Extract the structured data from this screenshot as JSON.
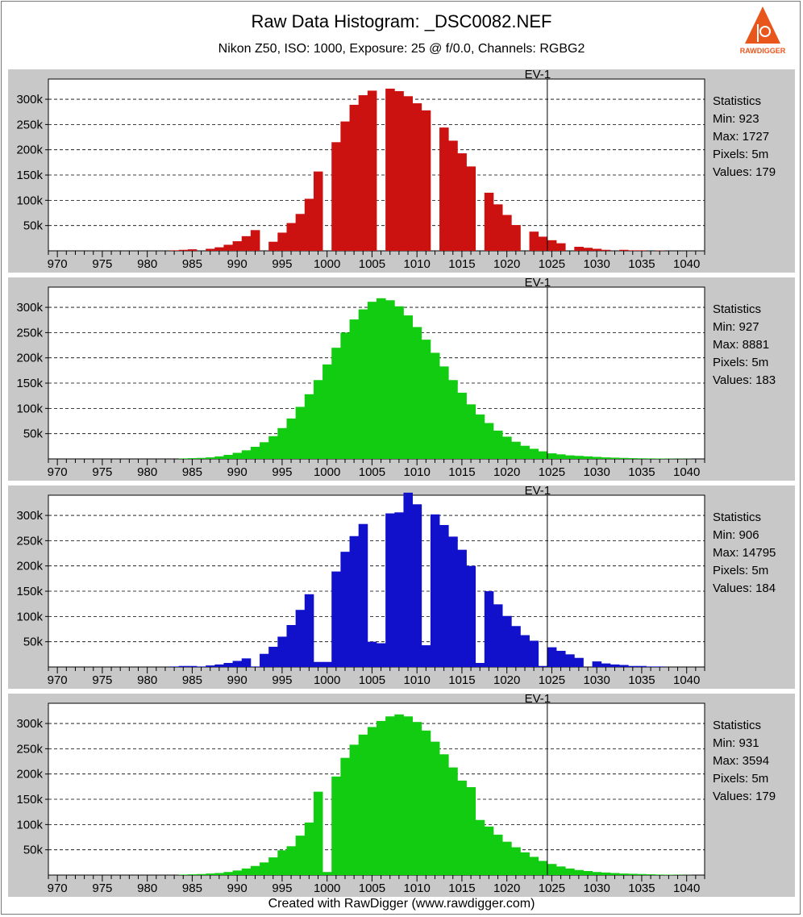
{
  "header": {
    "title": "Raw Data Histogram: _DSC0082.NEF",
    "subtitle": "Nikon Z50, ISO: 1000, Exposure: 25 @ f/0.0, Channels: RGBG2",
    "logo_text": "RAWDIGGER"
  },
  "footer": {
    "text": "Created with RawDigger (www.rawdigger.com)"
  },
  "chart_data": [
    {
      "type": "bar",
      "channel": "R",
      "color": "#cc1111",
      "marker_label": "EV-1",
      "marker_x": 1024.5,
      "xlim": [
        969,
        1042
      ],
      "ylim": [
        0,
        340000
      ],
      "x_ticks": [
        970,
        975,
        980,
        985,
        990,
        995,
        1000,
        1005,
        1010,
        1015,
        1020,
        1025,
        1030,
        1035,
        1040
      ],
      "y_ticks": [
        50000,
        100000,
        150000,
        200000,
        250000,
        300000
      ],
      "y_tick_labels": [
        "50k",
        "100k",
        "150k",
        "200k",
        "250k",
        "300k"
      ],
      "stats": {
        "heading": "Statistics",
        "min": "Min: 923",
        "max": "Max: 1727",
        "pixels": "Pixels: 5m",
        "values": "Values: 179"
      },
      "x": [
        983,
        984,
        985,
        986,
        987,
        988,
        989,
        990,
        991,
        992,
        993,
        994,
        995,
        996,
        997,
        998,
        999,
        1000,
        1001,
        1002,
        1003,
        1004,
        1005,
        1006,
        1007,
        1008,
        1009,
        1010,
        1011,
        1012,
        1013,
        1014,
        1015,
        1016,
        1017,
        1018,
        1019,
        1020,
        1021,
        1022,
        1023,
        1024,
        1025,
        1026,
        1027,
        1028,
        1029,
        1030,
        1031,
        1032,
        1033,
        1034,
        1035,
        1036,
        1037,
        1038,
        1039,
        1040
      ],
      "values": [
        1000,
        2000,
        3000,
        0,
        4000,
        7000,
        12000,
        19000,
        29000,
        41000,
        0,
        18000,
        36000,
        55000,
        73000,
        103000,
        157000,
        0,
        215000,
        256000,
        289000,
        308000,
        317000,
        0,
        321000,
        316000,
        306000,
        292000,
        278000,
        0,
        244000,
        218000,
        193000,
        167000,
        0,
        115000,
        92000,
        71000,
        51000,
        0,
        38000,
        28000,
        21000,
        15000,
        0,
        8000,
        6000,
        4000,
        2000,
        0,
        2000,
        1000,
        1000,
        0,
        500,
        0,
        0,
        0
      ]
    },
    {
      "type": "bar",
      "channel": "G",
      "color": "#11cc11",
      "marker_label": "EV-1",
      "marker_x": 1024.5,
      "xlim": [
        969,
        1042
      ],
      "ylim": [
        0,
        340000
      ],
      "x_ticks": [
        970,
        975,
        980,
        985,
        990,
        995,
        1000,
        1005,
        1010,
        1015,
        1020,
        1025,
        1030,
        1035,
        1040
      ],
      "y_ticks": [
        50000,
        100000,
        150000,
        200000,
        250000,
        300000
      ],
      "y_tick_labels": [
        "50k",
        "100k",
        "150k",
        "200k",
        "250k",
        "300k"
      ],
      "stats": {
        "heading": "Statistics",
        "min": "Min: 927",
        "max": "Max: 8881",
        "pixels": "Pixels: 5m",
        "values": "Values: 183"
      },
      "x": [
        984,
        985,
        986,
        987,
        988,
        989,
        990,
        991,
        992,
        993,
        994,
        995,
        996,
        997,
        998,
        999,
        1000,
        1001,
        1002,
        1003,
        1004,
        1005,
        1006,
        1007,
        1008,
        1009,
        1010,
        1011,
        1012,
        1013,
        1014,
        1015,
        1016,
        1017,
        1018,
        1019,
        1020,
        1021,
        1022,
        1023,
        1024,
        1025,
        1026,
        1027,
        1028,
        1029,
        1030,
        1031,
        1032,
        1033,
        1034,
        1035,
        1036,
        1037,
        1038,
        1039,
        1040
      ],
      "values": [
        1000,
        1500,
        2000,
        3000,
        5000,
        8000,
        12000,
        17000,
        24000,
        33000,
        45000,
        61000,
        80000,
        103000,
        128000,
        156000,
        187000,
        220000,
        250000,
        276000,
        296000,
        311000,
        318000,
        314000,
        302000,
        284000,
        261000,
        236000,
        210000,
        183000,
        156000,
        131000,
        108000,
        88000,
        71000,
        56000,
        44000,
        34000,
        26000,
        20000,
        15000,
        11000,
        9000,
        7000,
        6000,
        5000,
        4000,
        3000,
        2500,
        2000,
        1500,
        1200,
        1000,
        800,
        600,
        400,
        300
      ]
    },
    {
      "type": "bar",
      "channel": "B",
      "color": "#1111cc",
      "marker_label": "EV-1",
      "marker_x": 1024.5,
      "xlim": [
        969,
        1042
      ],
      "ylim": [
        0,
        340000
      ],
      "x_ticks": [
        970,
        975,
        980,
        985,
        990,
        995,
        1000,
        1005,
        1010,
        1015,
        1020,
        1025,
        1030,
        1035,
        1040
      ],
      "y_ticks": [
        50000,
        100000,
        150000,
        200000,
        250000,
        300000
      ],
      "y_tick_labels": [
        "50k",
        "100k",
        "150k",
        "200k",
        "250k",
        "300k"
      ],
      "stats": {
        "heading": "Statistics",
        "min": "Min: 906",
        "max": "Max: 14795",
        "pixels": "Pixels: 5m",
        "values": "Values: 184"
      },
      "x": [
        983,
        984,
        985,
        986,
        987,
        988,
        989,
        990,
        991,
        992,
        993,
        994,
        995,
        996,
        997,
        998,
        999,
        1000,
        1001,
        1002,
        1003,
        1004,
        1005,
        1006,
        1007,
        1008,
        1009,
        1010,
        1011,
        1012,
        1013,
        1014,
        1015,
        1016,
        1017,
        1018,
        1019,
        1020,
        1021,
        1022,
        1023,
        1024,
        1025,
        1026,
        1027,
        1028,
        1029,
        1030,
        1031,
        1032,
        1033,
        1034,
        1035,
        1036,
        1037,
        1038,
        1039,
        1040
      ],
      "values": [
        1000,
        2000,
        2000,
        1000,
        3000,
        5000,
        8000,
        12000,
        17000,
        1000,
        26000,
        40000,
        60000,
        83000,
        113000,
        144000,
        10000,
        10000,
        189000,
        228000,
        259000,
        283000,
        50000,
        47000,
        304000,
        306000,
        345000,
        322000,
        43000,
        302000,
        281000,
        258000,
        232000,
        200000,
        8000,
        150000,
        124000,
        101000,
        81000,
        63000,
        52000,
        2000,
        39000,
        32000,
        25000,
        18000,
        0,
        11000,
        7000,
        5000,
        4000,
        2000,
        2000,
        1000,
        1000,
        0,
        0,
        0
      ]
    },
    {
      "type": "bar",
      "channel": "G2",
      "color": "#11cc11",
      "marker_label": "EV-1",
      "marker_x": 1024.5,
      "xlim": [
        969,
        1042
      ],
      "ylim": [
        0,
        340000
      ],
      "x_ticks": [
        970,
        975,
        980,
        985,
        990,
        995,
        1000,
        1005,
        1010,
        1015,
        1020,
        1025,
        1030,
        1035,
        1040
      ],
      "y_ticks": [
        50000,
        100000,
        150000,
        200000,
        250000,
        300000
      ],
      "y_tick_labels": [
        "50k",
        "100k",
        "150k",
        "200k",
        "250k",
        "300k"
      ],
      "stats": {
        "heading": "Statistics",
        "min": "Min: 931",
        "max": "Max: 3594",
        "pixels": "Pixels: 5m",
        "values": "Values: 179"
      },
      "x": [
        984,
        985,
        986,
        987,
        988,
        989,
        990,
        991,
        992,
        993,
        994,
        995,
        996,
        997,
        998,
        999,
        1000,
        1001,
        1002,
        1003,
        1004,
        1005,
        1006,
        1007,
        1008,
        1009,
        1010,
        1011,
        1012,
        1013,
        1014,
        1015,
        1016,
        1017,
        1018,
        1019,
        1020,
        1021,
        1022,
        1023,
        1024,
        1025,
        1026,
        1027,
        1028,
        1029,
        1030,
        1031,
        1032,
        1033,
        1034,
        1035,
        1036,
        1037,
        1038,
        1039,
        1040
      ],
      "values": [
        1000,
        1500,
        2000,
        3000,
        4000,
        6000,
        9000,
        13000,
        18000,
        25000,
        35000,
        49000,
        57000,
        78000,
        104000,
        165000,
        6000,
        195000,
        232000,
        258000,
        278000,
        293000,
        305000,
        314000,
        318000,
        314000,
        303000,
        286000,
        264000,
        239000,
        213000,
        187000,
        174000,
        109000,
        96000,
        80000,
        66000,
        55000,
        45000,
        36000,
        28000,
        22000,
        17000,
        13000,
        10000,
        8000,
        6000,
        5000,
        4000,
        3000,
        2500,
        2000,
        1500,
        1000,
        800,
        500,
        300
      ]
    }
  ]
}
